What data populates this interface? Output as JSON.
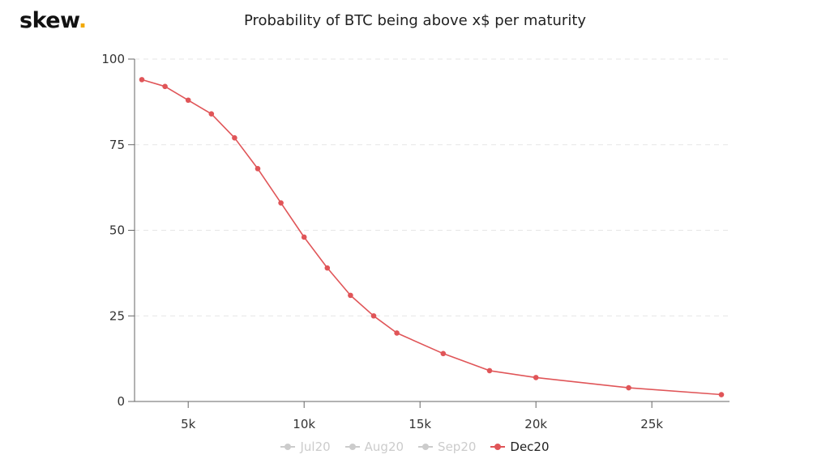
{
  "logo": {
    "text": "skew",
    "dot": ".",
    "dot_color": "#f2a900"
  },
  "chart_data": {
    "type": "line",
    "title": "Probability of BTC being above x$ per maturity",
    "xlabel": "",
    "ylabel": "",
    "xlim": [
      3000,
      28000
    ],
    "ylim": [
      0,
      100
    ],
    "x_ticks": [
      5000,
      10000,
      15000,
      20000,
      25000
    ],
    "x_tick_labels": [
      "5k",
      "10k",
      "15k",
      "20k",
      "25k"
    ],
    "y_ticks": [
      0,
      25,
      50,
      75,
      100
    ],
    "y_tick_labels": [
      "0",
      "25",
      "50",
      "75",
      "100"
    ],
    "grid": "horizontal dashed",
    "legend_position": "bottom-center",
    "series": [
      {
        "name": "Jul20",
        "visible": false,
        "color": "#cccccc",
        "x": [],
        "y": []
      },
      {
        "name": "Aug20",
        "visible": false,
        "color": "#cccccc",
        "x": [],
        "y": []
      },
      {
        "name": "Sep20",
        "visible": false,
        "color": "#cccccc",
        "x": [],
        "y": []
      },
      {
        "name": "Dec20",
        "visible": true,
        "color": "#e05558",
        "x": [
          3000,
          4000,
          5000,
          6000,
          7000,
          8000,
          9000,
          10000,
          11000,
          12000,
          13000,
          14000,
          16000,
          18000,
          20000,
          24000,
          28000
        ],
        "y": [
          94,
          92,
          88,
          84,
          77,
          68,
          58,
          48,
          39,
          31,
          25,
          20,
          14,
          9,
          7,
          4,
          2
        ]
      }
    ]
  }
}
